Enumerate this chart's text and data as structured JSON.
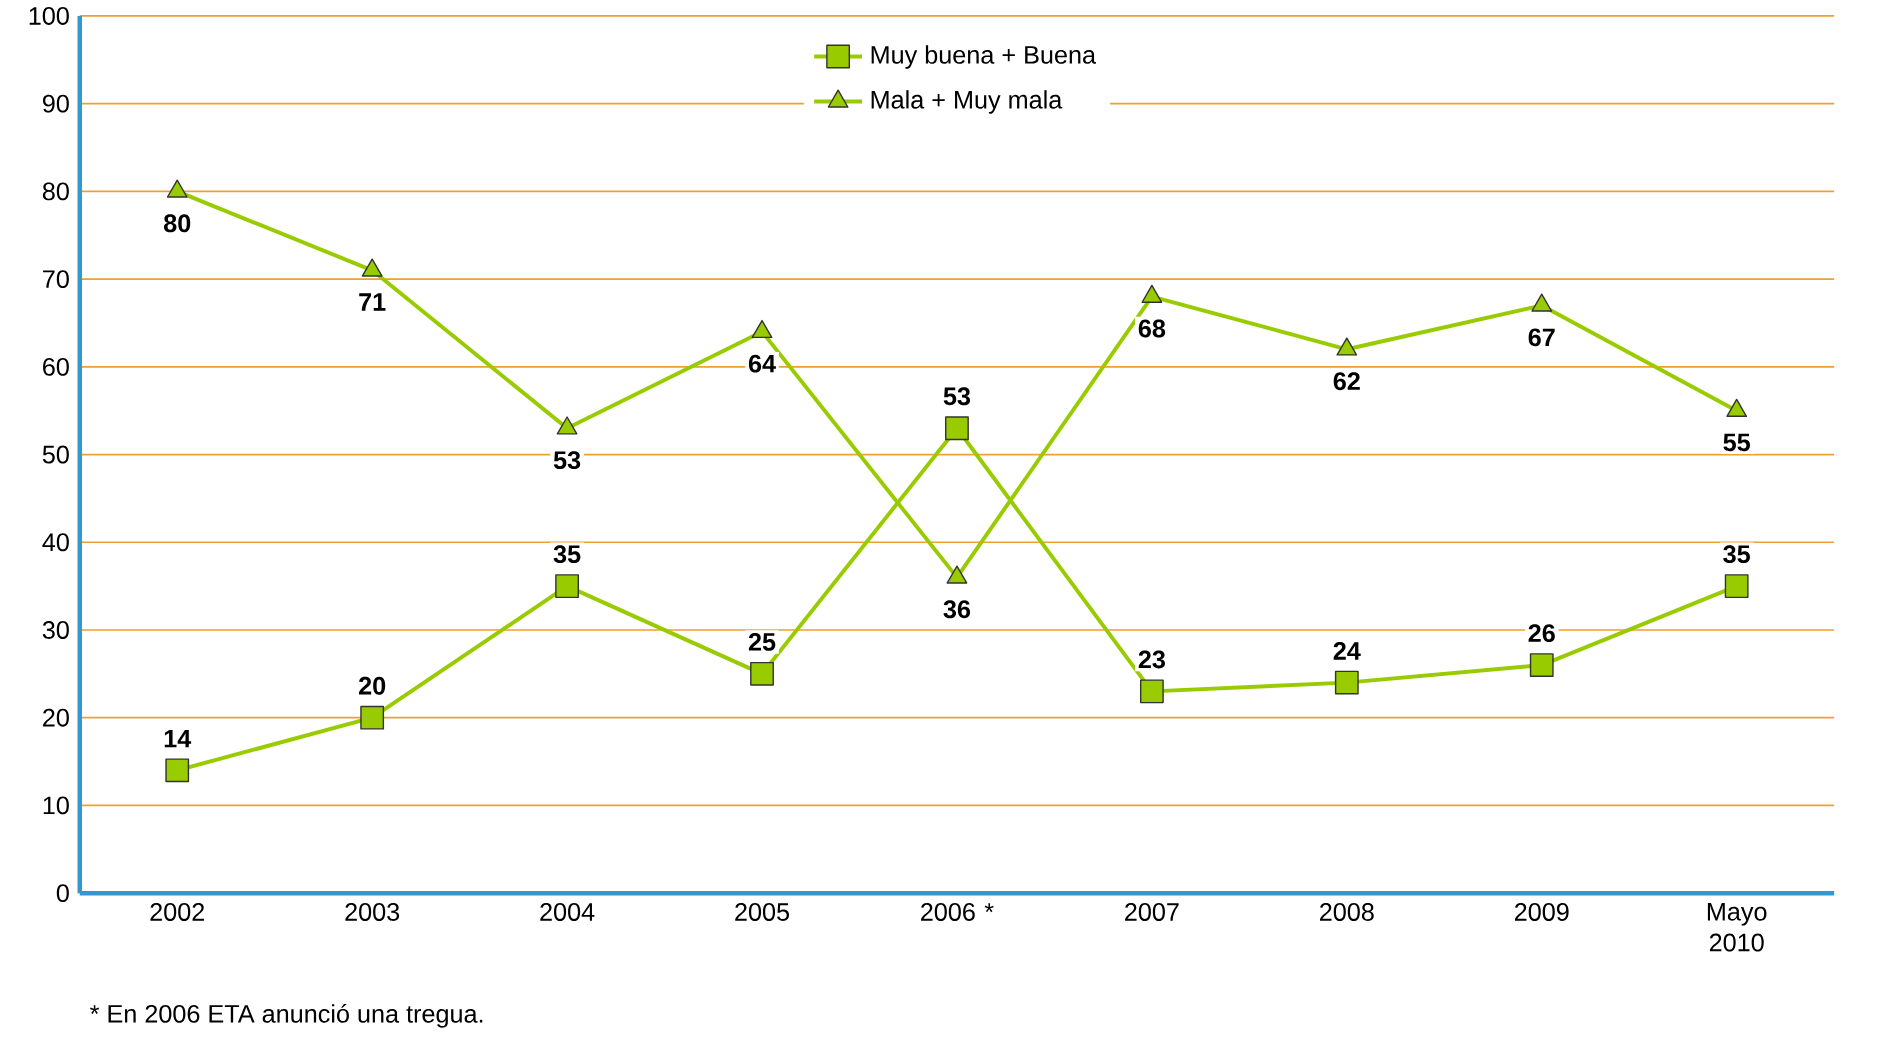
{
  "chart_data": {
    "type": "line",
    "categories": [
      "2002",
      "2003",
      "2004",
      "2005",
      "2006 *",
      "2007",
      "2008",
      "2009",
      "Mayo 2010"
    ],
    "series": [
      {
        "name": "Muy buena + Buena",
        "color": "#99cc00",
        "marker": "square",
        "values": [
          14,
          20,
          35,
          25,
          53,
          23,
          24,
          26,
          35
        ]
      },
      {
        "name": "Mala + Muy mala",
        "color": "#99cc00",
        "marker": "triangle",
        "values": [
          80,
          71,
          53,
          64,
          36,
          68,
          62,
          67,
          55
        ]
      }
    ],
    "ylim": [
      0,
      100
    ],
    "yticks": [
      0,
      10,
      20,
      30,
      40,
      50,
      60,
      70,
      80,
      90,
      100
    ],
    "grid": "y",
    "legend": "top",
    "data_labels": true,
    "annotations": [
      "* En 2006 ETA anunció una tregua."
    ]
  }
}
